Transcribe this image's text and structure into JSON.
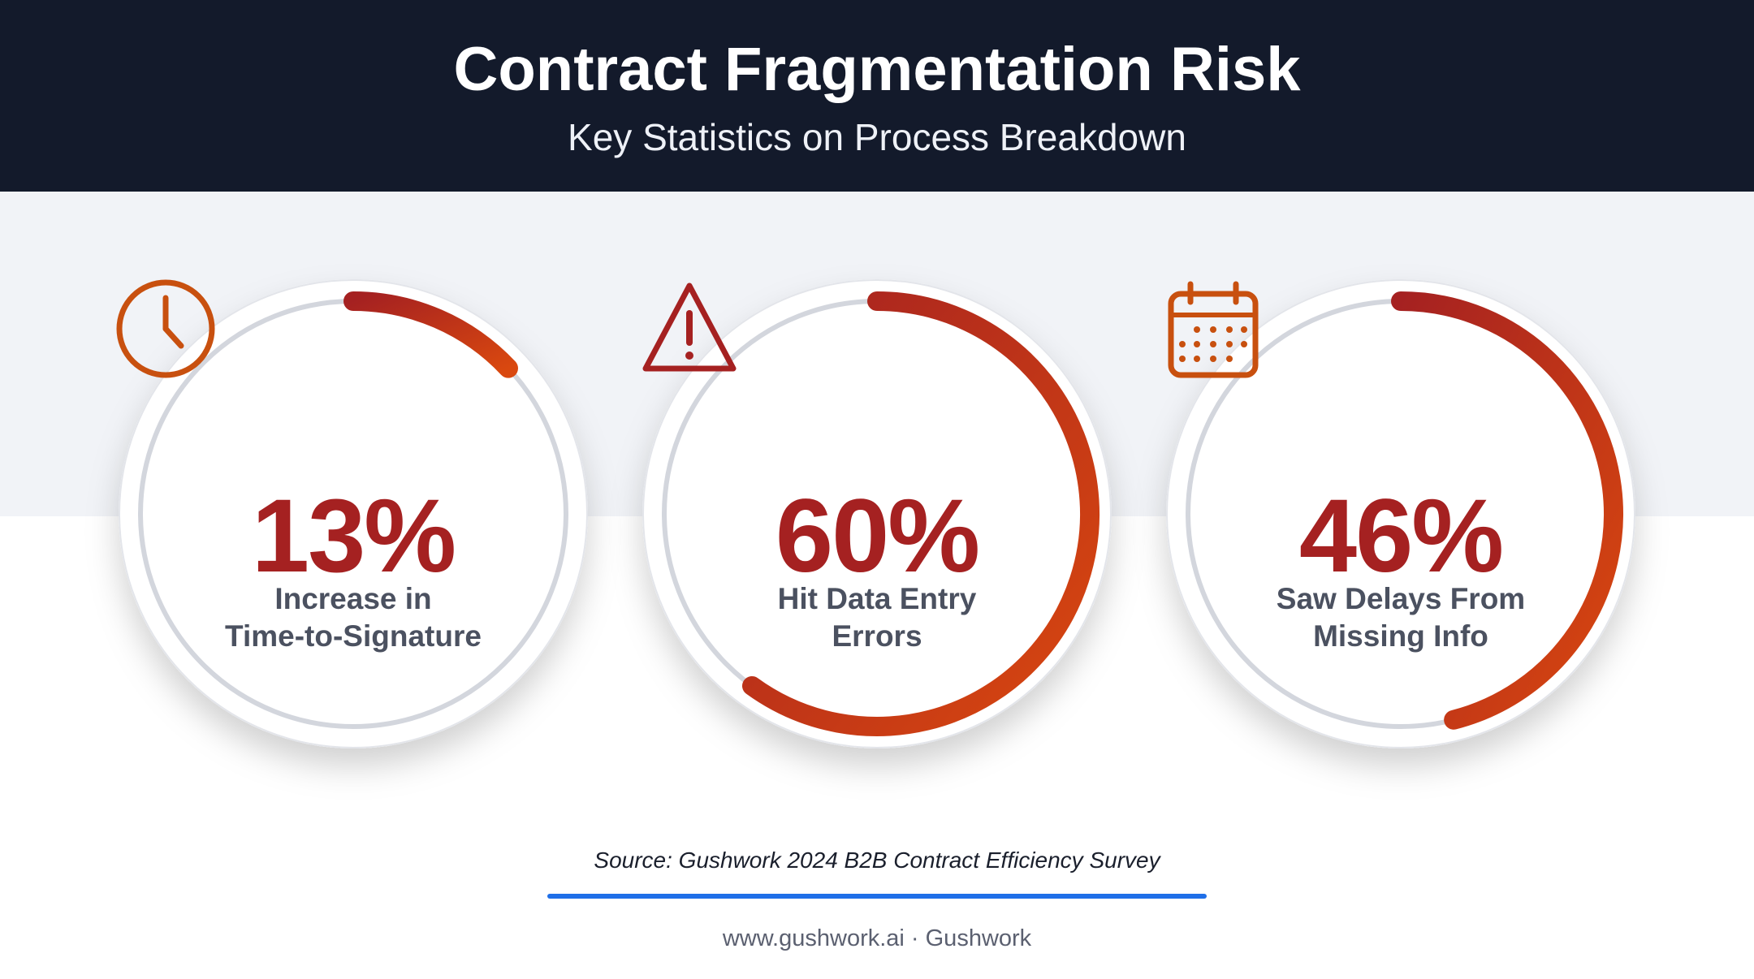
{
  "header": {
    "title": "Contract Fragmentation Risk",
    "subtitle": "Key Statistics on Process Breakdown"
  },
  "chart_data": [
    {
      "type": "gauge",
      "value": 13,
      "value_label": "13%",
      "label_lines": [
        "Increase in",
        "Time-to-Signature"
      ],
      "icon": "clock-icon"
    },
    {
      "type": "gauge",
      "value": 60,
      "value_label": "60%",
      "label_lines": [
        "Hit Data Entry",
        "Errors"
      ],
      "icon": "warning-triangle-icon"
    },
    {
      "type": "gauge",
      "value": 46,
      "value_label": "46%",
      "label_lines": [
        "Saw Delays From",
        "Missing Info"
      ],
      "icon": "calendar-icon"
    }
  ],
  "source": "Source: Gushwork 2024 B2B Contract Efficiency Survey",
  "footer": "www.gushwork.ai · Gushwork",
  "colors": {
    "header_bg": "#131a2b",
    "value_red": "#a52121",
    "arc_start": "#a52121",
    "arc_end": "#d9480f",
    "icon_orange": "#c8500f",
    "rule_blue": "#1f6fe8"
  }
}
